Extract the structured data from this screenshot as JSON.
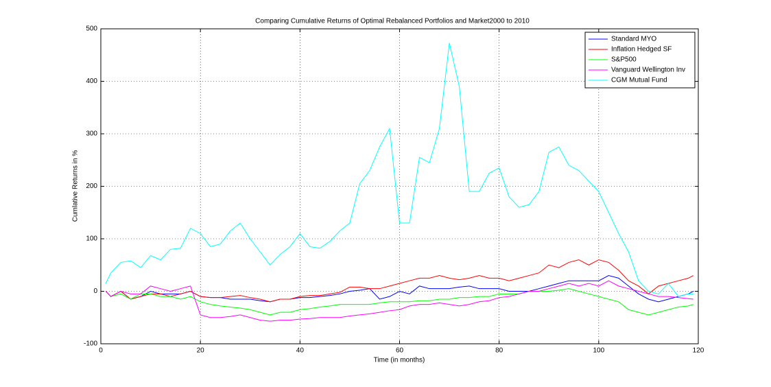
{
  "chart_data": {
    "type": "line",
    "title": "Comparing Cumulative Returns of Optimal Rebalanced Portfolios and Market2000 to 2010",
    "x_label": "Time (in months)",
    "y_label": "Cumlative Returns in %",
    "x": [
      1,
      2,
      4,
      6,
      8,
      10,
      12,
      14,
      16,
      18,
      20,
      22,
      24,
      26,
      28,
      30,
      32,
      34,
      36,
      38,
      40,
      42,
      44,
      46,
      48,
      50,
      52,
      54,
      56,
      58,
      60,
      62,
      64,
      66,
      68,
      70,
      72,
      74,
      76,
      78,
      80,
      82,
      84,
      86,
      88,
      90,
      92,
      94,
      96,
      98,
      100,
      102,
      104,
      106,
      108,
      110,
      112,
      114,
      116,
      118,
      119
    ],
    "series": [
      {
        "name": "Standard MYO",
        "color": "#0000ff",
        "values": [
          0,
          -10,
          0,
          -15,
          -10,
          0,
          -5,
          -5,
          -5,
          0,
          -10,
          -12,
          -12,
          -15,
          -15,
          -15,
          -18,
          -20,
          -15,
          -15,
          -12,
          -12,
          -10,
          -8,
          -5,
          0,
          2,
          5,
          -15,
          -10,
          0,
          -5,
          10,
          5,
          5,
          5,
          8,
          10,
          5,
          5,
          5,
          0,
          0,
          0,
          5,
          10,
          15,
          20,
          20,
          20,
          20,
          30,
          25,
          10,
          -5,
          -15,
          -20,
          -15,
          -10,
          -5,
          0
        ]
      },
      {
        "name": "Inflation Hedged SF",
        "color": "#ff0000",
        "values": [
          0,
          -10,
          0,
          -15,
          -10,
          -5,
          -5,
          -10,
          -5,
          0,
          -10,
          -12,
          -12,
          -10,
          -8,
          -12,
          -15,
          -20,
          -15,
          -15,
          -10,
          -8,
          -8,
          -5,
          -2,
          8,
          8,
          5,
          5,
          10,
          15,
          20,
          25,
          25,
          30,
          25,
          22,
          25,
          30,
          25,
          25,
          20,
          25,
          30,
          35,
          50,
          45,
          55,
          60,
          50,
          60,
          55,
          40,
          20,
          10,
          -5,
          10,
          15,
          20,
          25,
          30
        ]
      },
      {
        "name": "S&P500",
        "color": "#00ff00",
        "values": [
          0,
          -10,
          -5,
          -15,
          -5,
          -5,
          -10,
          -10,
          -15,
          -10,
          -20,
          -25,
          -28,
          -30,
          -32,
          -35,
          -40,
          -45,
          -40,
          -40,
          -35,
          -33,
          -30,
          -28,
          -25,
          -25,
          -25,
          -25,
          -22,
          -20,
          -20,
          -20,
          -18,
          -18,
          -15,
          -15,
          -12,
          -12,
          -10,
          -10,
          -5,
          -5,
          -5,
          0,
          0,
          0,
          2,
          5,
          0,
          -5,
          -10,
          -15,
          -20,
          -35,
          -40,
          -45,
          -40,
          -35,
          -30,
          -28,
          -25
        ]
      },
      {
        "name": "Vanguard Wellington Inv",
        "color": "#ff00ff",
        "values": [
          0,
          -10,
          0,
          -5,
          -5,
          10,
          5,
          0,
          5,
          10,
          -45,
          -50,
          -50,
          -48,
          -45,
          -50,
          -55,
          -57,
          -55,
          -55,
          -53,
          -52,
          -50,
          -50,
          -50,
          -47,
          -45,
          -43,
          -40,
          -37,
          -35,
          -28,
          -25,
          -25,
          -22,
          -25,
          -28,
          -25,
          -20,
          -18,
          -12,
          -10,
          -5,
          0,
          0,
          5,
          10,
          15,
          10,
          15,
          10,
          20,
          10,
          5,
          0,
          -5,
          -10,
          -10,
          -12,
          -14,
          -15
        ]
      },
      {
        "name": "CGM Mutual Fund",
        "color": "#00ffff",
        "values": [
          15,
          35,
          55,
          58,
          45,
          68,
          60,
          80,
          82,
          120,
          110,
          85,
          90,
          115,
          130,
          100,
          75,
          50,
          70,
          85,
          110,
          85,
          82,
          95,
          115,
          130,
          205,
          230,
          275,
          310,
          130,
          130,
          255,
          245,
          310,
          473,
          390,
          190,
          190,
          225,
          235,
          180,
          160,
          165,
          190,
          265,
          275,
          240,
          230,
          210,
          190,
          150,
          110,
          75,
          20,
          0,
          -5,
          15,
          -10,
          -5,
          -5
        ]
      }
    ],
    "xlim": [
      0,
      120
    ],
    "xticks": [
      0,
      20,
      40,
      60,
      80,
      100,
      120
    ],
    "ylim": [
      -100,
      500
    ],
    "yticks": [
      -100,
      0,
      100,
      200,
      300,
      400,
      500
    ],
    "grid": true,
    "legend": "top-right"
  }
}
